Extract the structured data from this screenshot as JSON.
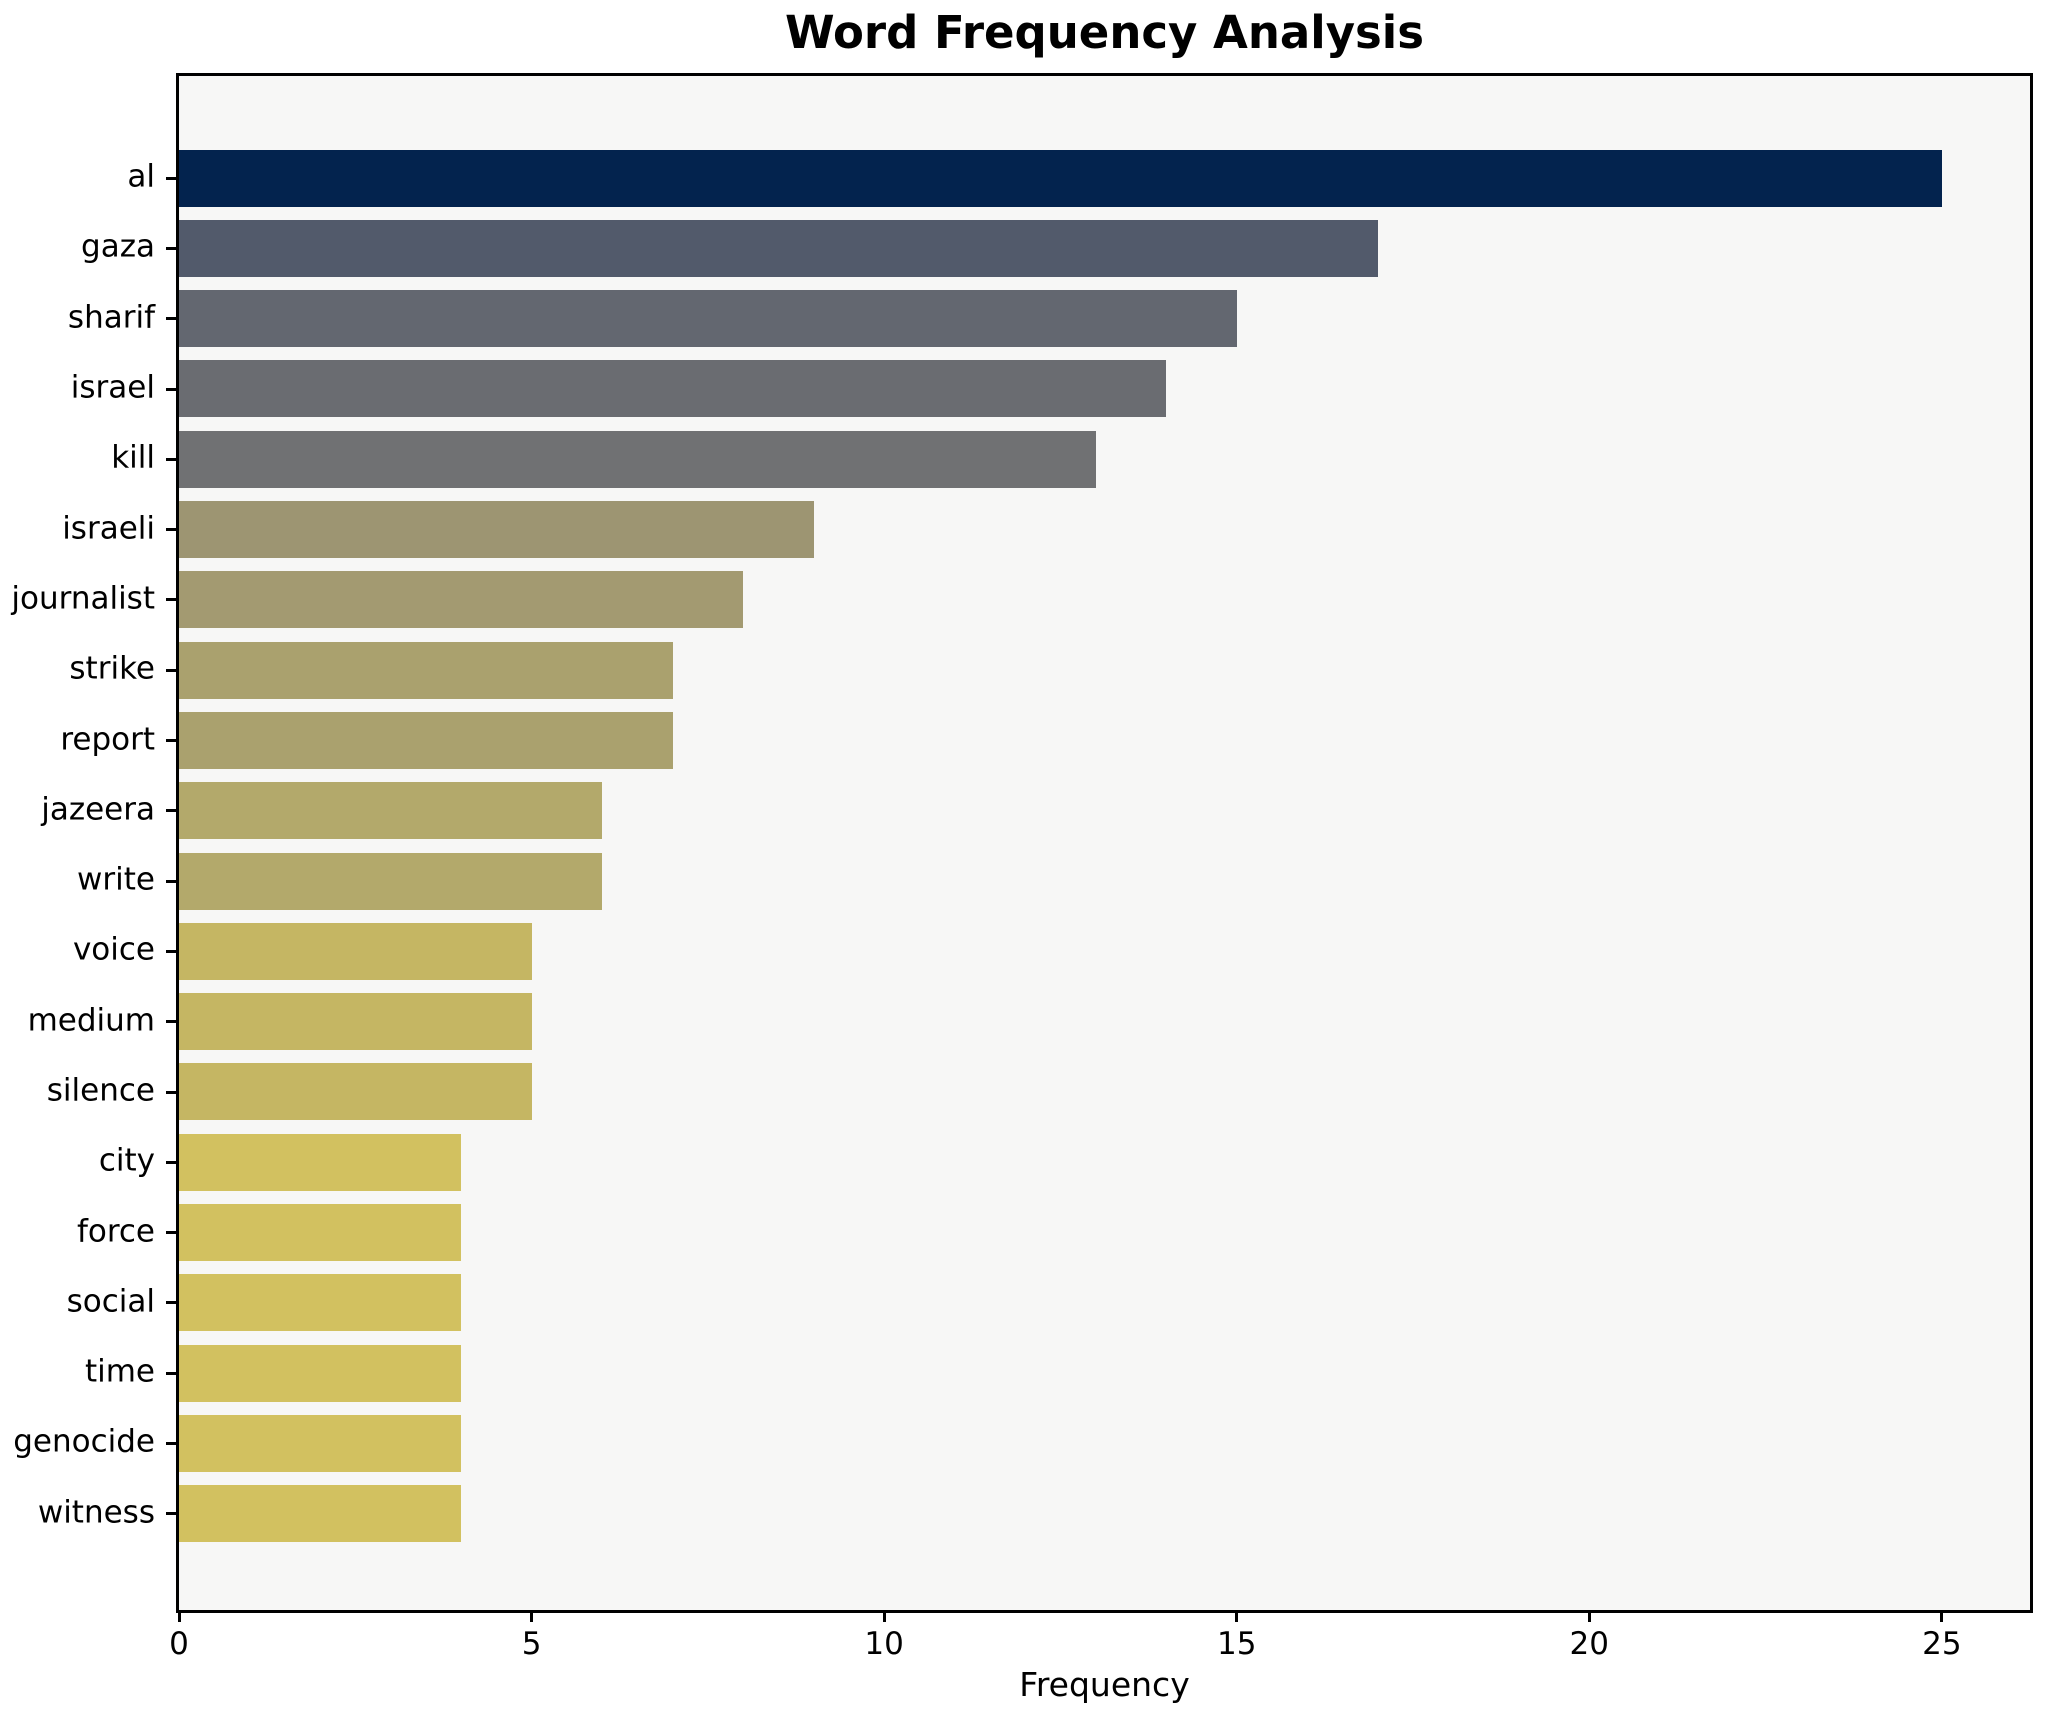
{
  "title": "Word Frequency Analysis",
  "x_axis": {
    "label": "Frequency",
    "ticks": [
      0,
      5,
      10,
      15,
      20,
      25
    ]
  },
  "colors": {
    "figure_background": "#ffffff",
    "plot_background": "#f7f7f6",
    "spine": "#000000",
    "text": "#000000"
  },
  "chart_data": {
    "type": "bar",
    "orientation": "horizontal",
    "title": "Word Frequency Analysis",
    "xlabel": "Frequency",
    "ylabel": "",
    "categories": [
      "al",
      "gaza",
      "sharif",
      "israel",
      "kill",
      "israeli",
      "journalist",
      "strike",
      "report",
      "jazeera",
      "write",
      "voice",
      "medium",
      "silence",
      "city",
      "force",
      "social",
      "time",
      "genocide",
      "witness"
    ],
    "values": [
      25,
      17,
      15,
      14,
      13,
      9,
      8,
      7,
      7,
      6,
      6,
      5,
      5,
      5,
      4,
      4,
      4,
      4,
      4,
      4
    ],
    "bar_colors": [
      "#03234e",
      "#525a6b",
      "#636770",
      "#6a6c71",
      "#707173",
      "#9d9572",
      "#a39a71",
      "#aaa16e",
      "#aaa16e",
      "#b3a96b",
      "#b3a96b",
      "#c5b663",
      "#c5b663",
      "#c5b663",
      "#d2c160",
      "#d2c160",
      "#d2c160",
      "#d2c160",
      "#d2c160",
      "#d2c160"
    ],
    "xlim": [
      0,
      26.25
    ],
    "grid": false,
    "legend": null
  }
}
